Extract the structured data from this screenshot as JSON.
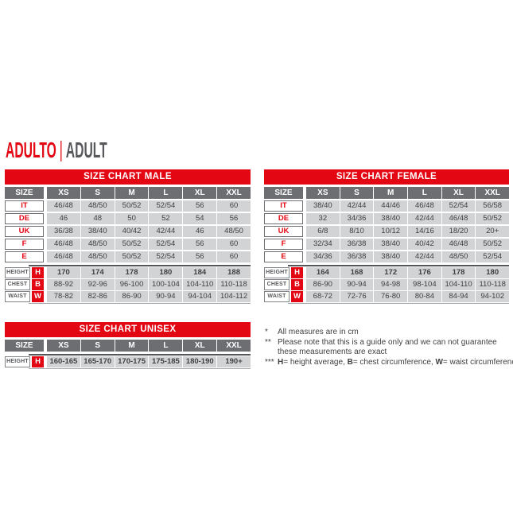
{
  "title": {
    "primary": "ADULTO",
    "separator": "|",
    "secondary": "ADULT"
  },
  "colors": {
    "accent_red": "#e30613",
    "header_gray": "#6d6e71",
    "cell_gray": "#d1d3d4",
    "text_dark": "#414042",
    "title_gray": "#57585b"
  },
  "tables": {
    "male": {
      "title": "SIZE CHART MALE",
      "size_label": "SIZE",
      "columns": [
        "XS",
        "S",
        "M",
        "L",
        "XL",
        "XXL"
      ],
      "size_rows": [
        {
          "label": "IT",
          "values": [
            "46/48",
            "48/50",
            "50/52",
            "52/54",
            "56",
            "60"
          ]
        },
        {
          "label": "DE",
          "values": [
            "46",
            "48",
            "50",
            "52",
            "54",
            "56"
          ]
        },
        {
          "label": "UK",
          "values": [
            "36/38",
            "38/40",
            "40/42",
            "42/44",
            "46",
            "48/50"
          ]
        },
        {
          "label": "F",
          "values": [
            "46/48",
            "48/50",
            "50/52",
            "52/54",
            "56",
            "60"
          ]
        },
        {
          "label": "E",
          "values": [
            "46/48",
            "48/50",
            "50/52",
            "52/54",
            "56",
            "60"
          ]
        }
      ],
      "measure_rows": [
        {
          "label": "HEIGHT",
          "letter": "H",
          "bold": true,
          "values": [
            "170",
            "174",
            "178",
            "180",
            "184",
            "188"
          ]
        },
        {
          "label": "CHEST",
          "letter": "B",
          "bold": false,
          "values": [
            "88-92",
            "92-96",
            "96-100",
            "100-104",
            "104-110",
            "110-118"
          ]
        },
        {
          "label": "WAIST",
          "letter": "W",
          "bold": false,
          "values": [
            "78-82",
            "82-86",
            "86-90",
            "90-94",
            "94-104",
            "104-112"
          ]
        }
      ]
    },
    "female": {
      "title": "SIZE CHART FEMALE",
      "size_label": "SIZE",
      "columns": [
        "XS",
        "S",
        "M",
        "L",
        "XL",
        "XXL"
      ],
      "size_rows": [
        {
          "label": "IT",
          "values": [
            "38/40",
            "42/44",
            "44/46",
            "46/48",
            "52/54",
            "56/58"
          ]
        },
        {
          "label": "DE",
          "values": [
            "32",
            "34/36",
            "38/40",
            "42/44",
            "46/48",
            "50/52"
          ]
        },
        {
          "label": "UK",
          "values": [
            "6/8",
            "8/10",
            "10/12",
            "14/16",
            "18/20",
            "20+"
          ]
        },
        {
          "label": "F",
          "values": [
            "32/34",
            "36/38",
            "38/40",
            "40/42",
            "46/48",
            "50/52"
          ]
        },
        {
          "label": "E",
          "values": [
            "34/36",
            "36/38",
            "38/40",
            "42/44",
            "48/50",
            "52/54"
          ]
        }
      ],
      "measure_rows": [
        {
          "label": "HEIGHT",
          "letter": "H",
          "bold": true,
          "values": [
            "164",
            "168",
            "172",
            "176",
            "178",
            "180"
          ]
        },
        {
          "label": "CHEST",
          "letter": "B",
          "bold": false,
          "values": [
            "86-90",
            "90-94",
            "94-98",
            "98-104",
            "104-110",
            "110-118"
          ]
        },
        {
          "label": "WAIST",
          "letter": "W",
          "bold": false,
          "values": [
            "68-72",
            "72-76",
            "76-80",
            "80-84",
            "84-94",
            "94-102"
          ]
        }
      ]
    },
    "unisex": {
      "title": "SIZE CHART UNISEX",
      "size_label": "SIZE",
      "columns": [
        "XS",
        "S",
        "M",
        "L",
        "XL",
        "XXL"
      ],
      "size_rows": [],
      "measure_rows": [
        {
          "label": "HEIGHT",
          "letter": "H",
          "bold": true,
          "values": [
            "160-165",
            "165-170",
            "170-175",
            "175-185",
            "180-190",
            "190+"
          ]
        }
      ]
    }
  },
  "footnotes": [
    {
      "marker": "*",
      "nowrap": false,
      "segments": [
        {
          "text": "All measures are in cm",
          "bold": false
        }
      ]
    },
    {
      "marker": "**",
      "nowrap": false,
      "segments": [
        {
          "text": "Please note that this is a guide only and we can not guarantee these measurements are exact",
          "bold": false
        }
      ]
    },
    {
      "marker": "***",
      "nowrap": true,
      "segments": [
        {
          "text": "H",
          "bold": true
        },
        {
          "text": "= height average, ",
          "bold": false
        },
        {
          "text": "B",
          "bold": true
        },
        {
          "text": "= chest circumference, ",
          "bold": false
        },
        {
          "text": "W",
          "bold": true
        },
        {
          "text": "= waist circumference",
          "bold": false
        }
      ]
    }
  ]
}
